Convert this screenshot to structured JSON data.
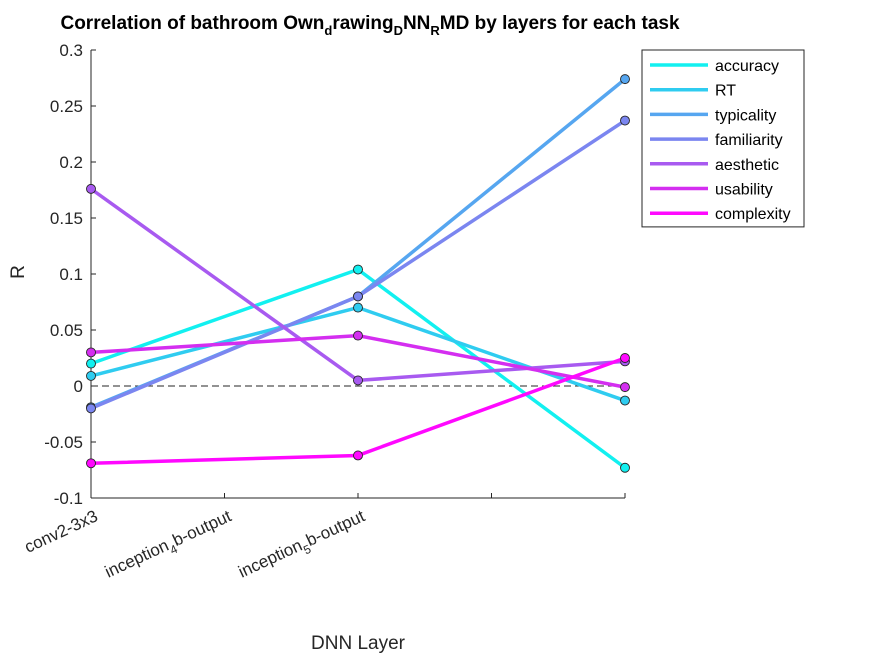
{
  "chart_data": {
    "type": "line",
    "title": {
      "p1": "Correlation of bathroom Own",
      "s1": "d",
      "p2": "rawing",
      "s2": "D",
      "p3": "NN",
      "s3": "R",
      "p4": "MD by layers for each task"
    },
    "xlabel": "DNN Layer",
    "ylabel": "R",
    "ylim": [
      -0.1,
      0.3
    ],
    "yticks": [
      "-0.1",
      "-0.05",
      "0",
      "0.05",
      "0.1",
      "0.15",
      "0.2",
      "0.25",
      "0.3"
    ],
    "xticks": [
      {
        "main": "conv2-3x3",
        "sub": "",
        "tail": ""
      },
      {
        "main": "inception",
        "sub": "4",
        "tail": "b-output"
      },
      {
        "main": "inception",
        "sub": "5",
        "tail": "b-output"
      }
    ],
    "x_positions": [
      1,
      3,
      5
    ],
    "xlim": [
      1,
      5
    ],
    "zero_line": true,
    "legend_position": "top-right",
    "series": [
      {
        "name": "accuracy",
        "color": "#12F0F0",
        "values": [
          0.02,
          0.104,
          -0.073
        ]
      },
      {
        "name": "RT",
        "color": "#2FCCF0",
        "values": [
          0.009,
          0.07,
          -0.013
        ]
      },
      {
        "name": "typicality",
        "color": "#56A6F0",
        "values": [
          -0.019,
          0.08,
          0.274
        ]
      },
      {
        "name": "familiarity",
        "color": "#7B86F0",
        "values": [
          -0.02,
          0.08,
          0.237
        ]
      },
      {
        "name": "aesthetic",
        "color": "#A85AF0",
        "values": [
          0.176,
          0.005,
          0.022
        ]
      },
      {
        "name": "usability",
        "color": "#D42EF0",
        "values": [
          0.03,
          0.045,
          -0.001
        ]
      },
      {
        "name": "complexity",
        "color": "#FF08FF",
        "values": [
          -0.069,
          -0.062,
          0.025
        ]
      }
    ]
  }
}
